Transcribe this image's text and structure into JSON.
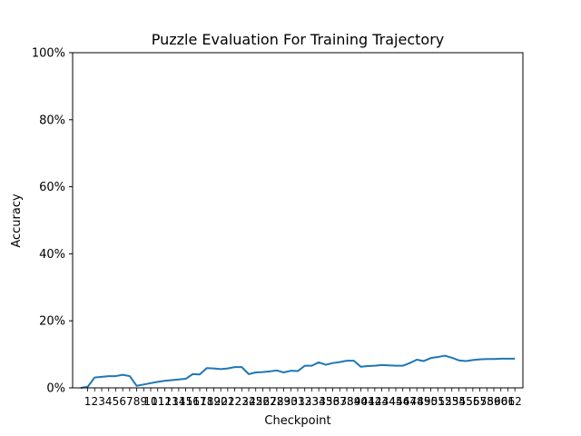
{
  "chart_data": {
    "type": "line",
    "title": "Puzzle Evaluation For Training Trajectory",
    "xlabel": "Checkpoint",
    "ylabel": "Accuracy",
    "ylim": [
      0,
      100
    ],
    "yticks": [
      "0%",
      "20%",
      "40%",
      "60%",
      "80%",
      "100%"
    ],
    "x": [
      -1,
      0,
      1,
      2,
      3,
      4,
      5,
      6,
      7,
      8,
      9,
      10,
      11,
      12,
      13,
      14,
      15,
      16,
      17,
      18,
      19,
      20,
      21,
      22,
      23,
      24,
      25,
      26,
      27,
      28,
      29,
      30,
      31,
      32,
      33,
      34,
      35,
      36,
      37,
      38,
      39,
      40,
      41,
      42,
      43,
      44,
      45,
      46,
      47,
      48,
      49,
      50,
      51,
      52,
      53,
      54,
      55,
      56,
      57,
      58,
      59,
      60,
      61
    ],
    "xtick_labels": [
      "1",
      "2",
      "3",
      "4",
      "5",
      "6",
      "7",
      "8",
      "9",
      "10",
      "11",
      "12",
      "13",
      "14",
      "15",
      "16",
      "17",
      "18",
      "19",
      "20",
      "21",
      "22",
      "23",
      "24",
      "25",
      "26",
      "27",
      "28",
      "29",
      "30",
      "31",
      "32",
      "33",
      "34",
      "35",
      "36",
      "37",
      "38",
      "39",
      "40",
      "41",
      "42",
      "43",
      "44",
      "45",
      "46",
      "47",
      "48",
      "49",
      "50",
      "51",
      "52",
      "53",
      "54",
      "55",
      "56",
      "57",
      "58",
      "59",
      "60",
      "61",
      "62"
    ],
    "series": [
      {
        "color": "#1f77b4",
        "values": [
          0.0,
          0.3,
          3.1,
          3.3,
          3.5,
          3.5,
          3.9,
          3.5,
          0.6,
          1.0,
          1.4,
          1.8,
          2.1,
          2.3,
          2.5,
          2.7,
          4.1,
          4.0,
          5.9,
          5.8,
          5.6,
          5.8,
          6.2,
          6.2,
          4.1,
          4.6,
          4.7,
          4.9,
          5.2,
          4.6,
          5.1,
          5.0,
          6.6,
          6.6,
          7.6,
          6.9,
          7.4,
          7.7,
          8.1,
          8.1,
          6.3,
          6.5,
          6.6,
          6.8,
          6.7,
          6.6,
          6.6,
          7.4,
          8.4,
          8.0,
          8.9,
          9.2,
          9.6,
          9.0,
          8.2,
          8.0,
          8.3,
          8.5,
          8.6,
          8.6,
          8.7,
          8.7,
          8.7
        ]
      }
    ]
  }
}
